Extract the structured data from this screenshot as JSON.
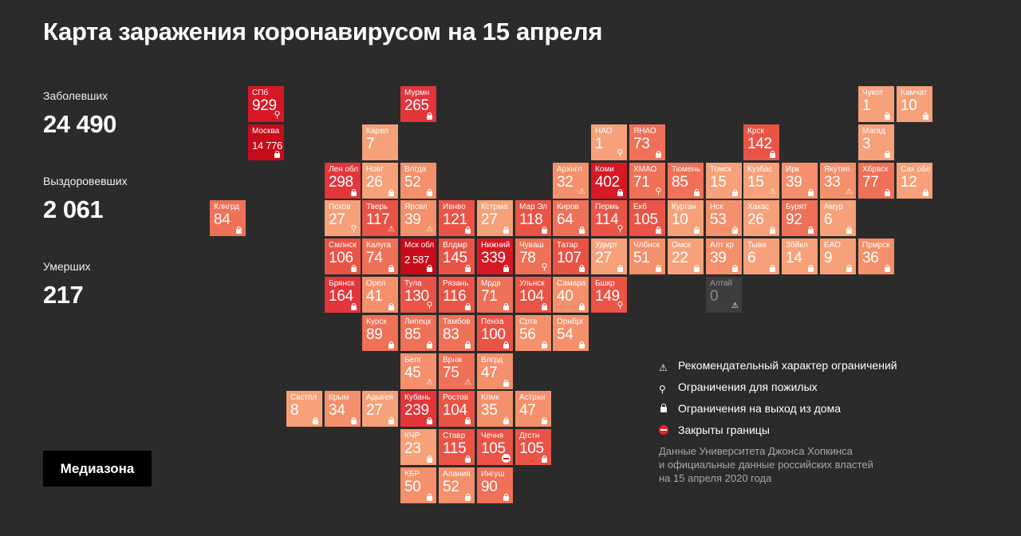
{
  "title": "Карта заражения коронавирусом на 15 апреля",
  "stats": {
    "sick_label": "Заболевших",
    "sick_value": "24 490",
    "recovered_label": "Выздоровевших",
    "recovered_value": "2 061",
    "dead_label": "Умерших",
    "dead_value": "217"
  },
  "logo": "Медиазона",
  "colors": {
    "background": "#2b2b2b",
    "scale": [
      "#f6a179",
      "#f4906b",
      "#ef7157",
      "#ea5446",
      "#e3353a",
      "#d71926",
      "#c80b1a"
    ],
    "no_data": "#3d3d3d"
  },
  "legend": {
    "advisory": "Рекомендательный характер ограничений",
    "elderly": "Ограничения для пожилых",
    "lockdown": "Ограничения на выход из дома",
    "borders": "Закрыты границы"
  },
  "source_lines": [
    "Данные Университета Джонса Хопкинса",
    "и официальные данные российских властей",
    "на 15 апреля 2020 года"
  ],
  "regions": [
    {
      "n": "СПб",
      "v": "929",
      "c": 0,
      "r": 0,
      "icon": "elderly"
    },
    {
      "n": "Москва",
      "v": "14 776",
      "c": 0,
      "r": 1,
      "icon": "lock"
    },
    {
      "n": "Мурмн",
      "v": "265",
      "c": 4,
      "r": 0,
      "icon": "lock"
    },
    {
      "n": "Карел",
      "v": "7",
      "c": 3,
      "r": 1,
      "icon": ""
    },
    {
      "n": "НАО",
      "v": "1",
      "c": 9,
      "r": 1,
      "icon": "elderly"
    },
    {
      "n": "ЯНАО",
      "v": "73",
      "c": 10,
      "r": 1,
      "icon": "lock"
    },
    {
      "n": "Крск",
      "v": "142",
      "c": 13,
      "r": 1,
      "icon": "lock"
    },
    {
      "n": "Чукот",
      "v": "1",
      "c": 16,
      "r": 0,
      "icon": "lock"
    },
    {
      "n": "Камчат",
      "v": "10",
      "c": 17,
      "r": 0,
      "icon": "lock"
    },
    {
      "n": "Магад",
      "v": "3",
      "c": 16,
      "r": 1,
      "icon": "lock"
    },
    {
      "n": "Лен обл",
      "v": "298",
      "c": 2,
      "r": 2,
      "icon": "lock"
    },
    {
      "n": "Новг",
      "v": "26",
      "c": 3,
      "r": 2,
      "icon": "lock"
    },
    {
      "n": "Влгда",
      "v": "52",
      "c": 4,
      "r": 2,
      "icon": "lock"
    },
    {
      "n": "Архнгл",
      "v": "32",
      "c": 8,
      "r": 2,
      "icon": "advisory"
    },
    {
      "n": "Коми",
      "v": "402",
      "c": 9,
      "r": 2,
      "icon": "lock"
    },
    {
      "n": "ХМАО",
      "v": "71",
      "c": 10,
      "r": 2,
      "icon": "elderly"
    },
    {
      "n": "Тюмень",
      "v": "85",
      "c": 11,
      "r": 2,
      "icon": "lock"
    },
    {
      "n": "Томск",
      "v": "15",
      "c": 12,
      "r": 2,
      "icon": "lock"
    },
    {
      "n": "Кузбас",
      "v": "15",
      "c": 13,
      "r": 2,
      "icon": "advisory"
    },
    {
      "n": "Ирк",
      "v": "39",
      "c": 14,
      "r": 2,
      "icon": "lock"
    },
    {
      "n": "Якутия",
      "v": "33",
      "c": 15,
      "r": 2,
      "icon": "advisory"
    },
    {
      "n": "Хбрвск",
      "v": "77",
      "c": 16,
      "r": 2,
      "icon": "lock"
    },
    {
      "n": "Сах обл",
      "v": "12",
      "c": 17,
      "r": 2,
      "icon": "lock"
    },
    {
      "n": "Клнгрд",
      "v": "84",
      "c": -1,
      "r": 3,
      "icon": "lock"
    },
    {
      "n": "Псков",
      "v": "27",
      "c": 2,
      "r": 3,
      "icon": "elderly"
    },
    {
      "n": "Тверь",
      "v": "117",
      "c": 3,
      "r": 3,
      "icon": "advisory"
    },
    {
      "n": "Ярсвл",
      "v": "39",
      "c": 4,
      "r": 3,
      "icon": "advisory"
    },
    {
      "n": "Ивнво",
      "v": "121",
      "c": 5,
      "r": 3,
      "icon": "lock"
    },
    {
      "n": "Кстрма",
      "v": "27",
      "c": 6,
      "r": 3,
      "icon": "lock"
    },
    {
      "n": "Мар Эл",
      "v": "118",
      "c": 7,
      "r": 3,
      "icon": "lock"
    },
    {
      "n": "Киров",
      "v": "64",
      "c": 8,
      "r": 3,
      "icon": "lock"
    },
    {
      "n": "Пермь",
      "v": "114",
      "c": 9,
      "r": 3,
      "icon": "elderly"
    },
    {
      "n": "Екб",
      "v": "105",
      "c": 10,
      "r": 3,
      "icon": "lock"
    },
    {
      "n": "Курган",
      "v": "10",
      "c": 11,
      "r": 3,
      "icon": "lock"
    },
    {
      "n": "Нск",
      "v": "53",
      "c": 12,
      "r": 3,
      "icon": "lock"
    },
    {
      "n": "Хакас",
      "v": "26",
      "c": 13,
      "r": 3,
      "icon": "lock"
    },
    {
      "n": "Бурят",
      "v": "92",
      "c": 14,
      "r": 3,
      "icon": "lock"
    },
    {
      "n": "Амур",
      "v": "6",
      "c": 15,
      "r": 3,
      "icon": "lock"
    },
    {
      "n": "Смлнск",
      "v": "106",
      "c": 2,
      "r": 4,
      "icon": "lock"
    },
    {
      "n": "Калуга",
      "v": "74",
      "c": 3,
      "r": 4,
      "icon": "lock"
    },
    {
      "n": "Мск обл",
      "v": "2 587",
      "c": 4,
      "r": 4,
      "icon": "lock"
    },
    {
      "n": "Влдмр",
      "v": "145",
      "c": 5,
      "r": 4,
      "icon": "lock"
    },
    {
      "n": "Нижний",
      "v": "339",
      "c": 6,
      "r": 4,
      "icon": "lock"
    },
    {
      "n": "Чуваш",
      "v": "78",
      "c": 7,
      "r": 4,
      "icon": "elderly"
    },
    {
      "n": "Татар",
      "v": "107",
      "c": 8,
      "r": 4,
      "icon": "lock"
    },
    {
      "n": "Удмрт",
      "v": "27",
      "c": 9,
      "r": 4,
      "icon": "lock"
    },
    {
      "n": "Члбнск",
      "v": "51",
      "c": 10,
      "r": 4,
      "icon": "lock"
    },
    {
      "n": "Омск",
      "v": "22",
      "c": 11,
      "r": 4,
      "icon": "lock"
    },
    {
      "n": "Алт кр",
      "v": "39",
      "c": 12,
      "r": 4,
      "icon": "lock"
    },
    {
      "n": "Тыва",
      "v": "6",
      "c": 13,
      "r": 4,
      "icon": "lock"
    },
    {
      "n": "Збйкл",
      "v": "14",
      "c": 14,
      "r": 4,
      "icon": "lock"
    },
    {
      "n": "ЕАО",
      "v": "9",
      "c": 15,
      "r": 4,
      "icon": "lock"
    },
    {
      "n": "Прмрск",
      "v": "36",
      "c": 16,
      "r": 4,
      "icon": "lock"
    },
    {
      "n": "Брянск",
      "v": "164",
      "c": 2,
      "r": 5,
      "icon": "lock"
    },
    {
      "n": "Орел",
      "v": "41",
      "c": 3,
      "r": 5,
      "icon": "lock"
    },
    {
      "n": "Тула",
      "v": "130",
      "c": 4,
      "r": 5,
      "icon": "elderly"
    },
    {
      "n": "Рязань",
      "v": "116",
      "c": 5,
      "r": 5,
      "icon": "lock"
    },
    {
      "n": "Мрдв",
      "v": "71",
      "c": 6,
      "r": 5,
      "icon": "lock"
    },
    {
      "n": "Ульнск",
      "v": "104",
      "c": 7,
      "r": 5,
      "icon": "lock"
    },
    {
      "n": "Самара",
      "v": "40",
      "c": 8,
      "r": 5,
      "icon": "lock"
    },
    {
      "n": "Бшкр",
      "v": "149",
      "c": 9,
      "r": 5,
      "icon": "elderly"
    },
    {
      "n": "Алтай",
      "v": "0",
      "c": 12,
      "r": 5,
      "icon": "advisory",
      "nodata": true
    },
    {
      "n": "Курск",
      "v": "89",
      "c": 3,
      "r": 6,
      "icon": "lock"
    },
    {
      "n": "Липецк",
      "v": "85",
      "c": 4,
      "r": 6,
      "icon": "lock"
    },
    {
      "n": "Тамбов",
      "v": "83",
      "c": 5,
      "r": 6,
      "icon": "lock"
    },
    {
      "n": "Пенза",
      "v": "100",
      "c": 6,
      "r": 6,
      "icon": "lock"
    },
    {
      "n": "Сртв",
      "v": "56",
      "c": 7,
      "r": 6,
      "icon": "lock"
    },
    {
      "n": "Орнбрг",
      "v": "54",
      "c": 8,
      "r": 6,
      "icon": "lock"
    },
    {
      "n": "Белг",
      "v": "45",
      "c": 4,
      "r": 7,
      "icon": "advisory"
    },
    {
      "n": "Врнж",
      "v": "75",
      "c": 5,
      "r": 7,
      "icon": "advisory"
    },
    {
      "n": "Влгрд",
      "v": "47",
      "c": 6,
      "r": 7,
      "icon": "lock"
    },
    {
      "n": "Свстпл",
      "v": "8",
      "c": 1,
      "r": 8,
      "icon": "lock"
    },
    {
      "n": "Крым",
      "v": "34",
      "c": 2,
      "r": 8,
      "icon": "lock"
    },
    {
      "n": "Адыгея",
      "v": "27",
      "c": 3,
      "r": 8,
      "icon": "lock"
    },
    {
      "n": "Кубань",
      "v": "239",
      "c": 4,
      "r": 8,
      "icon": "lock"
    },
    {
      "n": "Ростов",
      "v": "104",
      "c": 5,
      "r": 8,
      "icon": "lock"
    },
    {
      "n": "Клмк",
      "v": "35",
      "c": 6,
      "r": 8,
      "icon": "lock"
    },
    {
      "n": "Астрхн",
      "v": "47",
      "c": 7,
      "r": 8,
      "icon": "lock"
    },
    {
      "n": "КЧР",
      "v": "23",
      "c": 4,
      "r": 9,
      "icon": "lock"
    },
    {
      "n": "Ставр",
      "v": "115",
      "c": 5,
      "r": 9,
      "icon": "lock"
    },
    {
      "n": "Чечня",
      "v": "105",
      "c": 6,
      "r": 9,
      "icon": "borders"
    },
    {
      "n": "Дгстн",
      "v": "105",
      "c": 7,
      "r": 9,
      "icon": "lock"
    },
    {
      "n": "КБР",
      "v": "50",
      "c": 4,
      "r": 10,
      "icon": "lock"
    },
    {
      "n": "Алания",
      "v": "52",
      "c": 5,
      "r": 10,
      "icon": "lock"
    },
    {
      "n": "Ингуш",
      "v": "90",
      "c": 6,
      "r": 10,
      "icon": "lock"
    }
  ]
}
